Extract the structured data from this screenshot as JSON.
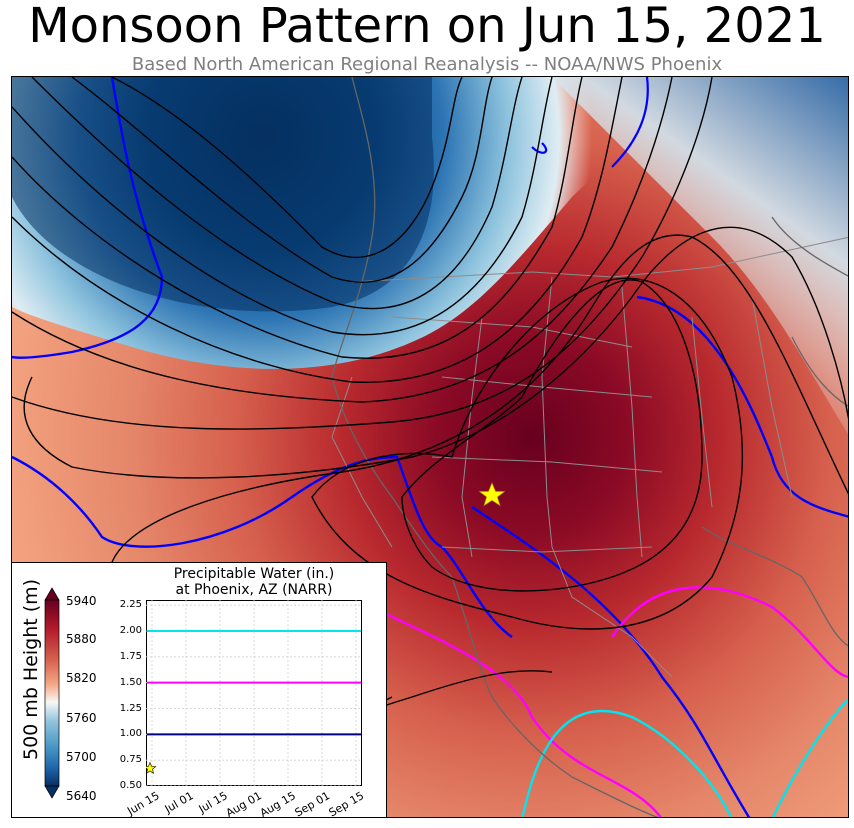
{
  "title": "Monsoon Pattern on Jun 15, 2021",
  "subtitle": "Based North American Regional Reanalysis -- NOAA/NWS Phoenix",
  "map": {
    "marker": "star-icon",
    "marker_color": "#ffff00",
    "contour_color": "#000000",
    "pw_line_colors": [
      "#0000ff",
      "#ff00ff",
      "#00e5ee"
    ]
  },
  "colorbar": {
    "label": "500 mb Height (m)",
    "ticks": [
      "5940",
      "5880",
      "5820",
      "5760",
      "5700",
      "5640"
    ],
    "range": [
      5640,
      5940
    ],
    "colormap": "RdBu_r"
  },
  "chart_data": {
    "type": "line",
    "title": "Precipitable Water (in.)",
    "subtitle": "at Phoenix, AZ (NARR)",
    "yticks": [
      "2.25",
      "2.00",
      "1.75",
      "1.50",
      "1.25",
      "1.00",
      "0.75",
      "0.50"
    ],
    "ylim": [
      0.5,
      2.3
    ],
    "xticks": [
      "Jun 15",
      "Jul 01",
      "Jul 15",
      "Aug 01",
      "Aug 15",
      "Sep 01",
      "Sep 15"
    ],
    "grid": true,
    "reference_lines": [
      {
        "y": 2.0,
        "color": "#00e5ee"
      },
      {
        "y": 1.5,
        "color": "#ff00ff"
      },
      {
        "y": 1.0,
        "color": "#000080"
      }
    ],
    "series": [
      {
        "x": [
          "Jun 15"
        ],
        "y": [
          0.67
        ],
        "marker": "star",
        "color": "#ffff00"
      }
    ]
  }
}
